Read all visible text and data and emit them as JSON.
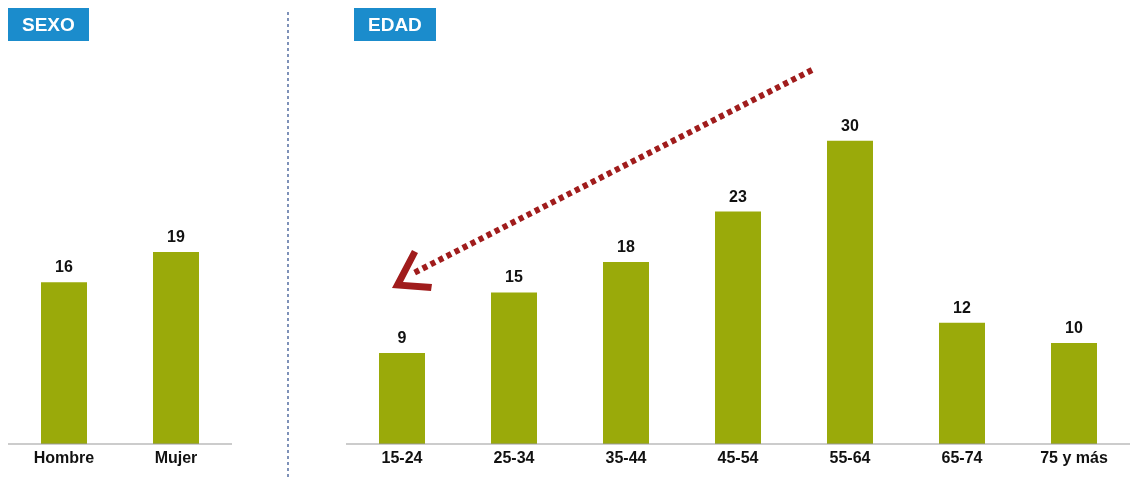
{
  "chart_data": [
    {
      "type": "bar",
      "title": "SEXO",
      "categories": [
        "Hombre",
        "Mujer"
      ],
      "values": [
        16,
        19
      ],
      "color": "#9aaa0a",
      "data_labels": true
    },
    {
      "type": "bar",
      "title": "EDAD",
      "categories": [
        "15-24",
        "25-34",
        "35-44",
        "45-54",
        "55-64",
        "65-74",
        "75 y más"
      ],
      "values": [
        9,
        15,
        18,
        23,
        30,
        12,
        10
      ],
      "color": "#9aaa0a",
      "data_labels": true
    }
  ]
}
